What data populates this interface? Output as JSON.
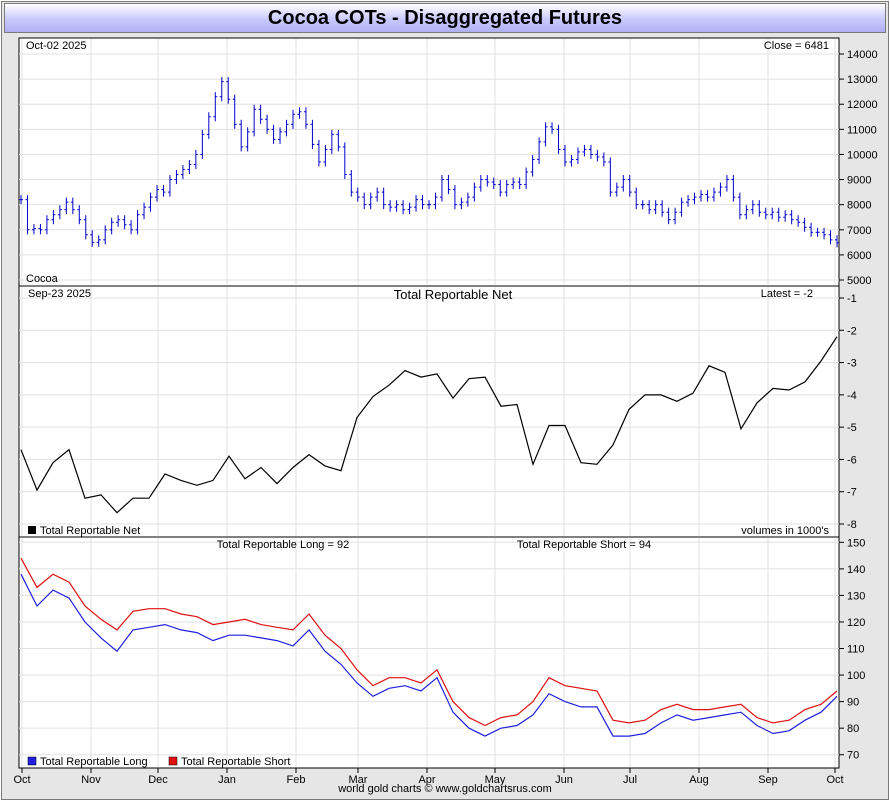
{
  "title": "Cocoa COTs - Disaggregated Futures",
  "footer": "world gold charts © www.goldchartsrus.com",
  "colors": {
    "price_bars": "#0000cc",
    "net_line": "#000000",
    "long_line": "#2020e0",
    "short_line": "#e01010",
    "grid": "#e0e0e0"
  },
  "x_axis": {
    "months": [
      "Oct",
      "Nov",
      "Dec",
      "Jan",
      "Feb",
      "Mar",
      "Apr",
      "May",
      "Jun",
      "Jul",
      "Aug",
      "Sep",
      "Oct"
    ]
  },
  "chart_data": [
    {
      "type": "bar",
      "style": "ohlc",
      "top_left_label": "Oct-02  2025",
      "top_right_label": "Close = 6481",
      "bottom_left_label": "Cocoa",
      "ylim": [
        5000,
        14000
      ],
      "yticks": [
        5000,
        6000,
        7000,
        8000,
        9000,
        10000,
        11000,
        12000,
        13000,
        14000
      ],
      "series": [
        {
          "values": [
            8200,
            7000,
            7050,
            7000,
            7400,
            7600,
            7800,
            8100,
            7800,
            7400,
            6800,
            6500,
            6600,
            7000,
            7300,
            7400,
            7200,
            7000,
            7600,
            7900,
            8300,
            8600,
            8500,
            9000,
            9200,
            9400,
            9600,
            10000,
            10800,
            11500,
            12300,
            12900,
            12200,
            11200,
            10300,
            10900,
            11800,
            11400,
            11000,
            10600,
            10900,
            11200,
            11600,
            11700,
            11200,
            10400,
            9700,
            10200,
            10800,
            10300,
            9200,
            8500,
            8300,
            8000,
            8300,
            8500,
            8000,
            7900,
            8000,
            7800,
            7900,
            8200,
            8000,
            8000,
            8300,
            9000,
            8600,
            8000,
            8100,
            8300,
            8700,
            9000,
            8900,
            8800,
            8500,
            8800,
            8900,
            8800,
            9300,
            9800,
            10500,
            11100,
            11000,
            10200,
            9700,
            9800,
            10100,
            10200,
            10000,
            9900,
            9700,
            8500,
            8700,
            9000,
            8500,
            8000,
            8000,
            7800,
            8000,
            7700,
            7400,
            7700,
            8100,
            8200,
            8300,
            8400,
            8300,
            8500,
            8700,
            9000,
            8300,
            7600,
            7800,
            8000,
            7700,
            7600,
            7700,
            7500,
            7600,
            7400,
            7300,
            7100,
            6900,
            6900,
            6800,
            6600,
            6481
          ]
        }
      ]
    },
    {
      "type": "line",
      "top_left_label": "Sep-23  2025",
      "title": "Total Reportable Net",
      "top_right_label": "Latest = -2",
      "legend": "Total Reportable Net",
      "units_note": "volumes in 1000's",
      "ylim": [
        -8,
        -1
      ],
      "yticks": [
        -8,
        -7,
        -6,
        -5,
        -4,
        -3,
        -2,
        -1
      ],
      "series": [
        {
          "name": "Total Reportable Net",
          "values": [
            -5.7,
            -6.95,
            -6.1,
            -5.7,
            -7.2,
            -7.1,
            -7.65,
            -7.2,
            -7.2,
            -6.45,
            -6.65,
            -6.8,
            -6.65,
            -5.9,
            -6.6,
            -6.25,
            -6.75,
            -6.25,
            -5.85,
            -6.2,
            -6.35,
            -4.7,
            -4.05,
            -3.7,
            -3.25,
            -3.45,
            -3.35,
            -4.1,
            -3.5,
            -3.45,
            -4.35,
            -4.3,
            -6.15,
            -4.95,
            -4.95,
            -6.1,
            -6.15,
            -5.55,
            -4.45,
            -4.0,
            -4.0,
            -4.2,
            -3.95,
            -3.1,
            -3.3,
            -5.05,
            -4.25,
            -3.8,
            -3.85,
            -3.6,
            -2.95,
            -2.2
          ]
        }
      ]
    },
    {
      "type": "line",
      "top_left_label": "Total Reportable Long = 92",
      "top_right_label": "Total Reportable Short = 94",
      "legend_position": "bottom-left",
      "ylim": [
        65,
        152
      ],
      "yticks": [
        70,
        80,
        90,
        100,
        110,
        120,
        130,
        140,
        150
      ],
      "series": [
        {
          "name": "Total Reportable Long",
          "values": [
            138,
            126,
            132,
            129,
            120,
            114,
            109,
            117,
            118,
            119,
            117,
            116,
            113,
            115,
            115,
            114,
            113,
            111,
            117,
            109,
            104,
            97,
            92,
            95,
            96,
            94,
            99,
            86,
            80,
            77,
            80,
            81,
            85,
            93,
            90,
            88,
            88,
            77,
            77,
            78,
            82,
            85,
            83,
            84,
            85,
            86,
            81,
            78,
            79,
            83,
            86,
            92
          ]
        },
        {
          "name": "Total Reportable Short",
          "values": [
            144,
            133,
            138,
            135,
            126,
            121,
            117,
            124,
            125,
            125,
            123,
            122,
            119,
            120,
            121,
            119,
            118,
            117,
            123,
            115,
            110,
            102,
            96,
            99,
            99,
            97,
            102,
            90,
            84,
            81,
            84,
            85,
            90,
            99,
            96,
            95,
            94,
            83,
            82,
            83,
            87,
            89,
            87,
            87,
            88,
            89,
            84,
            82,
            83,
            87,
            89,
            94
          ]
        }
      ]
    }
  ]
}
